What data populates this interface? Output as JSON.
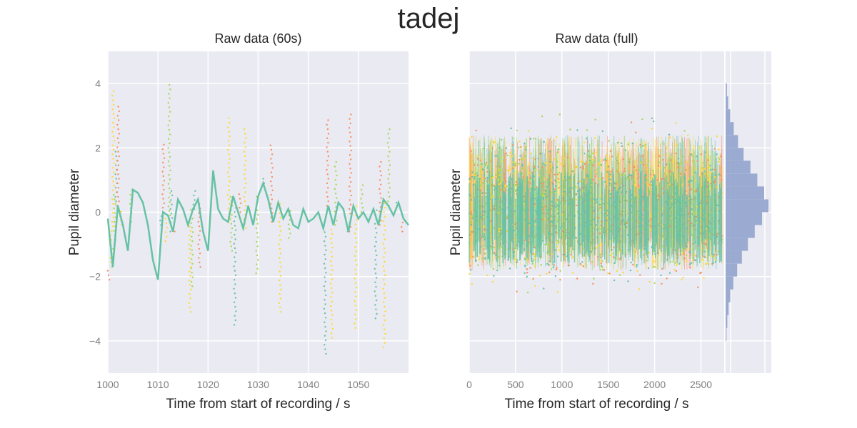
{
  "figure": {
    "suptitle": "tadej"
  },
  "colors": {
    "axes_bg": "#EAEAF2",
    "grid": "#FFFFFF",
    "teal": "#66C2A5",
    "orange": "#FC8D62",
    "yellow": "#FFD92F",
    "green": "#A6D854",
    "hist": "#8C9FCA",
    "tick_label": "#7F7F7F",
    "text": "#262626"
  },
  "chart_data": [
    {
      "type": "line",
      "title": "Raw data (60s)",
      "xlabel": "Time from start of recording / s",
      "ylabel": "Pupil diameter",
      "xlim": [
        1000,
        1060
      ],
      "ylim": [
        -5,
        5
      ],
      "xticks": [
        1000,
        1010,
        1020,
        1030,
        1040,
        1050
      ],
      "xtick_labels": [
        "1000",
        "1010",
        "1020",
        "1030",
        "1040",
        "1050"
      ],
      "yticks": [
        -4,
        -2,
        0,
        2,
        4
      ],
      "ytick_labels": [
        "−4",
        "−2",
        "0",
        "2",
        "4"
      ],
      "grid": true,
      "series": [
        {
          "style": "line",
          "color": "teal",
          "x": [
            1000,
            1001,
            1002,
            1003,
            1004,
            1005,
            1006,
            1007,
            1008,
            1009,
            1010,
            1011,
            1012,
            1013,
            1014,
            1015,
            1016,
            1017,
            1018,
            1019,
            1020,
            1021,
            1022,
            1023,
            1024,
            1025,
            1026,
            1027,
            1028,
            1029,
            1030,
            1031,
            1032,
            1033,
            1034,
            1035,
            1036,
            1037,
            1038,
            1039,
            1040,
            1041,
            1042,
            1043,
            1044,
            1045,
            1046,
            1047,
            1048,
            1049,
            1050,
            1051,
            1052,
            1053,
            1054,
            1055,
            1056,
            1057,
            1058,
            1059,
            1060
          ],
          "values": [
            -0.2,
            -1.7,
            0.2,
            -0.4,
            -1.2,
            0.7,
            0.6,
            0.3,
            -0.4,
            -1.5,
            -2.1,
            0.0,
            -0.1,
            -0.6,
            0.4,
            0.1,
            -0.4,
            0.1,
            0.4,
            -0.6,
            -1.2,
            1.3,
            0.1,
            -0.2,
            -0.3,
            0.5,
            0.0,
            -0.5,
            0.2,
            -0.4,
            0.5,
            0.9,
            0.4,
            -0.3,
            0.3,
            -0.2,
            0.1,
            -0.4,
            -0.5,
            0.1,
            -0.3,
            -0.2,
            0.0,
            -0.5,
            0.2,
            -0.4,
            0.3,
            0.1,
            -0.6,
            0.2,
            -0.2,
            0.0,
            -0.3,
            0.1,
            -0.4,
            0.4,
            0.2,
            -0.1,
            0.3,
            -0.2,
            -0.4
          ]
        },
        {
          "style": "dots",
          "colors": [
            "orange",
            "yellow",
            "green",
            "teal"
          ],
          "x": [
            1000.5,
            1001.0,
            1001.3,
            1001.6,
            1002.0,
            1002.5,
            1004.5,
            1010.5,
            1011.0,
            1011.6,
            1012.2,
            1012.6,
            1013.3,
            1016.3,
            1016.7,
            1017.2,
            1018.2,
            1024.1,
            1024.6,
            1025.3,
            1026.3,
            1027.3,
            1029.7,
            1031.1,
            1032.6,
            1034.3,
            1036.2,
            1043.3,
            1043.8,
            1044.6,
            1045.4,
            1047.7,
            1048.3,
            1049.4,
            1050.6,
            1053.4,
            1054.3,
            1055.1,
            1056.0,
            1057.6,
            1058.6
          ],
          "values": [
            -2.1,
            3.8,
            0.6,
            1.9,
            3.3,
            0.1,
            -0.3,
            -0.4,
            2.2,
            -0.9,
            4.1,
            0.8,
            -0.4,
            -3.1,
            -2.3,
            0.7,
            -1.7,
            3.0,
            -1.2,
            -3.5,
            0.6,
            2.6,
            -1.9,
            1.1,
            2.1,
            -3.1,
            -0.8,
            -4.4,
            2.9,
            -3.9,
            1.7,
            -0.6,
            3.1,
            -3.6,
            0.9,
            -3.3,
            1.6,
            -4.2,
            2.6,
            0.4,
            -0.6
          ]
        }
      ]
    },
    {
      "type": "scatter",
      "title": "Raw data (full)",
      "xlabel": "Time from start of recording / s",
      "ylabel": "Pupil diameter",
      "xlim": [
        0,
        2750
      ],
      "ylim": [
        -5,
        5
      ],
      "xticks": [
        0,
        500,
        1000,
        1500,
        2000,
        2500
      ],
      "xtick_labels": [
        "0",
        "500",
        "1000",
        "1500",
        "2000",
        "2500"
      ],
      "yticks": [
        -4,
        -2,
        0,
        2,
        4
      ],
      "grid": true,
      "series_colors": [
        "teal",
        "orange",
        "yellow",
        "green"
      ],
      "data_extent_x": [
        0,
        2730
      ],
      "core_band": [
        -1.8,
        2.4
      ]
    },
    {
      "type": "bar",
      "orientation": "horizontal",
      "title": "",
      "ylim": [
        -5,
        5
      ],
      "bin_centers": [
        -3.8,
        -3.4,
        -3.0,
        -2.6,
        -2.2,
        -1.8,
        -1.4,
        -1.0,
        -0.6,
        -0.2,
        0.2,
        0.6,
        1.0,
        1.4,
        1.8,
        2.2,
        2.6,
        3.0,
        3.4,
        3.8
      ],
      "counts": [
        0.02,
        0.04,
        0.07,
        0.11,
        0.18,
        0.27,
        0.38,
        0.52,
        0.68,
        0.85,
        1.0,
        0.9,
        0.74,
        0.58,
        0.42,
        0.29,
        0.19,
        0.11,
        0.06,
        0.03
      ],
      "color": "hist",
      "grid": true
    }
  ]
}
